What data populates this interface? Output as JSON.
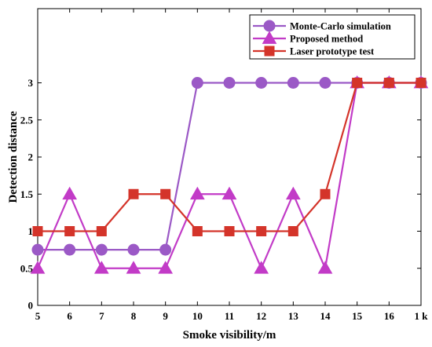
{
  "chart_data": {
    "type": "line",
    "categories": [
      "5",
      "6",
      "7",
      "8",
      "9",
      "10",
      "11",
      "12",
      "13",
      "14",
      "15",
      "16",
      "1 k"
    ],
    "xlabel": "Smoke visibility/m",
    "ylabel": "Detection distance",
    "ylim": [
      0,
      4
    ],
    "yticks": [
      0,
      0.5,
      1,
      1.5,
      2,
      2.5,
      3
    ],
    "ytick_labels": [
      "0",
      "0.5",
      "1",
      "1.5",
      "2",
      "2.5",
      "3"
    ],
    "grid": false,
    "legend_position": "top-right",
    "series": [
      {
        "name": "Monte-Carlo simulation",
        "color": "#9B59C6",
        "marker": "circle",
        "values": [
          0.75,
          0.75,
          0.75,
          0.75,
          0.75,
          3,
          3,
          3,
          3,
          3,
          3,
          3,
          3
        ]
      },
      {
        "name": "Proposed method",
        "color": "#C23BC7",
        "marker": "triangle",
        "values": [
          0.5,
          1.5,
          0.5,
          0.5,
          0.5,
          1.5,
          1.5,
          0.5,
          1.5,
          0.5,
          3,
          3,
          3
        ]
      },
      {
        "name": "Laser prototype test",
        "color": "#D4342A",
        "marker": "square",
        "values": [
          1,
          1,
          1,
          1.5,
          1.5,
          1,
          1,
          1,
          1,
          1.5,
          3,
          3,
          3
        ]
      }
    ]
  }
}
